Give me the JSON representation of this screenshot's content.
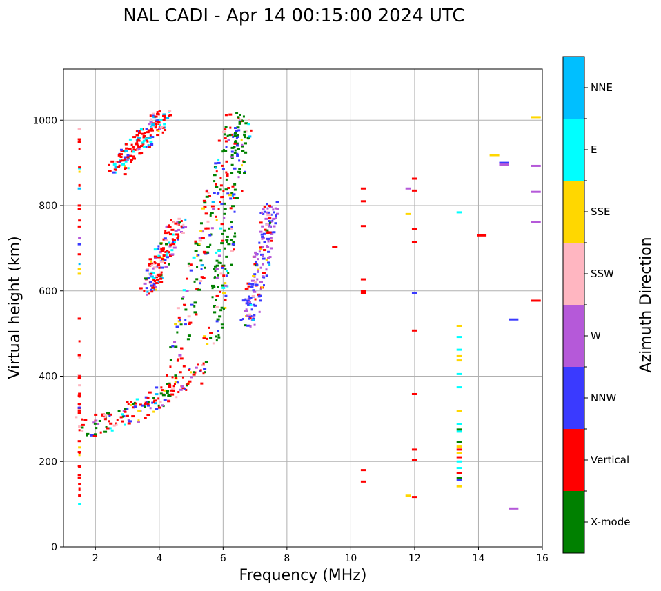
{
  "chart_data": {
    "type": "scatter",
    "title": "NAL CADI - Apr 14 00:15:00 2024 UTC",
    "xlabel": "Frequency (MHz)",
    "ylabel": "Virtual height (km)",
    "xlim": [
      1,
      16
    ],
    "ylim": [
      0,
      1120
    ],
    "xticks": [
      2,
      4,
      6,
      8,
      10,
      12,
      14,
      16
    ],
    "yticks": [
      0,
      200,
      400,
      600,
      800,
      1000
    ],
    "grid": true,
    "colorbar": {
      "label": "Azimuth Direction",
      "categories": [
        "X-mode",
        "Vertical",
        "NNW",
        "W",
        "SSW",
        "SSE",
        "E",
        "NNE"
      ],
      "colors": [
        "#008000",
        "#ff0000",
        "#3a3aff",
        "#b559d9",
        "#ffb6c1",
        "#ffd700",
        "#00ffff",
        "#00bfff"
      ]
    },
    "trace_regions": [
      {
        "name": "lower-trace",
        "start_freq": 1.6,
        "end_freq": 5.3,
        "start_height": 280,
        "end_height": 420,
        "weights": [
          0.22,
          0.38,
          0.12,
          0.08,
          0.08,
          0.06,
          0.04,
          0.02
        ]
      },
      {
        "name": "rising-branch",
        "start_freq": 4.5,
        "end_freq": 6.4,
        "start_height": 410,
        "end_height": 1010,
        "weights": [
          0.25,
          0.4,
          0.12,
          0.08,
          0.05,
          0.04,
          0.04,
          0.02
        ]
      },
      {
        "name": "upper-left-branch",
        "start_freq": 2.6,
        "end_freq": 4.2,
        "start_height": 880,
        "end_height": 1015,
        "weights": [
          0.02,
          0.55,
          0.08,
          0.05,
          0.08,
          0.02,
          0.12,
          0.08
        ]
      },
      {
        "name": "x-mode-branch",
        "start_freq": 5.6,
        "end_freq": 6.7,
        "start_height": 470,
        "end_height": 1010,
        "weights": [
          0.6,
          0.12,
          0.08,
          0.04,
          0.04,
          0.04,
          0.06,
          0.02
        ]
      },
      {
        "name": "mid-tail",
        "start_freq": 3.6,
        "end_freq": 4.6,
        "start_height": 600,
        "end_height": 760,
        "weights": [
          0.04,
          0.45,
          0.15,
          0.1,
          0.1,
          0.04,
          0.08,
          0.04
        ]
      },
      {
        "name": "right-scatter",
        "start_freq": 6.8,
        "end_freq": 7.5,
        "start_height": 520,
        "end_height": 800,
        "weights": [
          0.02,
          0.1,
          0.4,
          0.35,
          0.05,
          0.04,
          0.02,
          0.02
        ]
      },
      {
        "name": "noise-column-1.5",
        "start_freq": 1.5,
        "end_freq": 1.5,
        "start_height": 100,
        "end_height": 980,
        "weights": [
          0.02,
          0.65,
          0.05,
          0.04,
          0.06,
          0.1,
          0.05,
          0.03
        ]
      }
    ],
    "isolated_points": [
      {
        "freq": 9.5,
        "height": 703,
        "cat": "Vertical"
      },
      {
        "freq": 10.4,
        "height": 840,
        "cat": "Vertical"
      },
      {
        "freq": 10.4,
        "height": 810,
        "cat": "Vertical"
      },
      {
        "freq": 10.4,
        "height": 752,
        "cat": "Vertical"
      },
      {
        "freq": 10.4,
        "height": 627,
        "cat": "Vertical"
      },
      {
        "freq": 10.4,
        "height": 600,
        "cat": "Vertical"
      },
      {
        "freq": 10.4,
        "height": 595,
        "cat": "Vertical"
      },
      {
        "freq": 10.4,
        "height": 180,
        "cat": "Vertical"
      },
      {
        "freq": 10.4,
        "height": 153,
        "cat": "Vertical"
      },
      {
        "freq": 11.8,
        "height": 840,
        "cat": "W"
      },
      {
        "freq": 11.8,
        "height": 780,
        "cat": "SSE"
      },
      {
        "freq": 11.8,
        "height": 120,
        "cat": "SSE"
      },
      {
        "freq": 12.0,
        "height": 863,
        "cat": "Vertical"
      },
      {
        "freq": 12.0,
        "height": 835,
        "cat": "Vertical"
      },
      {
        "freq": 12.0,
        "height": 745,
        "cat": "Vertical"
      },
      {
        "freq": 12.0,
        "height": 714,
        "cat": "Vertical"
      },
      {
        "freq": 12.0,
        "height": 595,
        "cat": "NNW"
      },
      {
        "freq": 12.0,
        "height": 507,
        "cat": "Vertical"
      },
      {
        "freq": 12.0,
        "height": 358,
        "cat": "Vertical"
      },
      {
        "freq": 12.0,
        "height": 228,
        "cat": "Vertical"
      },
      {
        "freq": 12.0,
        "height": 203,
        "cat": "Vertical"
      },
      {
        "freq": 12.0,
        "height": 117,
        "cat": "Vertical"
      },
      {
        "freq": 13.4,
        "height": 784,
        "cat": "E"
      },
      {
        "freq": 13.4,
        "height": 518,
        "cat": "SSE"
      },
      {
        "freq": 13.4,
        "height": 492,
        "cat": "E"
      },
      {
        "freq": 13.4,
        "height": 462,
        "cat": "E"
      },
      {
        "freq": 13.4,
        "height": 447,
        "cat": "SSE"
      },
      {
        "freq": 13.4,
        "height": 437,
        "cat": "SSE"
      },
      {
        "freq": 13.4,
        "height": 405,
        "cat": "E"
      },
      {
        "freq": 13.4,
        "height": 374,
        "cat": "E"
      },
      {
        "freq": 13.4,
        "height": 318,
        "cat": "SSE"
      },
      {
        "freq": 13.4,
        "height": 288,
        "cat": "E"
      },
      {
        "freq": 13.4,
        "height": 275,
        "cat": "X-mode"
      },
      {
        "freq": 13.4,
        "height": 270,
        "cat": "E"
      },
      {
        "freq": 13.4,
        "height": 245,
        "cat": "X-mode"
      },
      {
        "freq": 13.4,
        "height": 235,
        "cat": "SSE"
      },
      {
        "freq": 13.4,
        "height": 228,
        "cat": "Vertical"
      },
      {
        "freq": 13.4,
        "height": 220,
        "cat": "SSE"
      },
      {
        "freq": 13.4,
        "height": 210,
        "cat": "Vertical"
      },
      {
        "freq": 13.4,
        "height": 200,
        "cat": "E"
      },
      {
        "freq": 13.4,
        "height": 185,
        "cat": "E"
      },
      {
        "freq": 13.4,
        "height": 173,
        "cat": "Vertical"
      },
      {
        "freq": 13.4,
        "height": 162,
        "cat": "X-mode"
      },
      {
        "freq": 13.4,
        "height": 157,
        "cat": "NNW"
      },
      {
        "freq": 13.4,
        "height": 142,
        "cat": "SSE"
      },
      {
        "freq": 14.1,
        "height": 730,
        "cat": "Vertical"
      },
      {
        "freq": 14.5,
        "height": 918,
        "cat": "SSE"
      },
      {
        "freq": 14.8,
        "height": 900,
        "cat": "NNW"
      },
      {
        "freq": 14.8,
        "height": 896,
        "cat": "W"
      },
      {
        "freq": 15.1,
        "height": 533,
        "cat": "NNW"
      },
      {
        "freq": 15.1,
        "height": 90,
        "cat": "W"
      },
      {
        "freq": 15.8,
        "height": 1007,
        "cat": "SSE"
      },
      {
        "freq": 15.8,
        "height": 893,
        "cat": "W"
      },
      {
        "freq": 15.8,
        "height": 832,
        "cat": "W"
      },
      {
        "freq": 15.8,
        "height": 762,
        "cat": "W"
      },
      {
        "freq": 15.8,
        "height": 577,
        "cat": "Vertical"
      }
    ]
  }
}
